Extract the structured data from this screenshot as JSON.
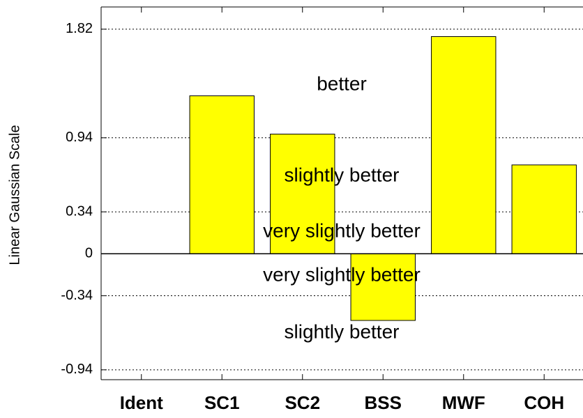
{
  "chart_data": {
    "type": "bar",
    "ylabel": "Linear Gaussian Scale",
    "categories": [
      "Ident",
      "SC1",
      "SC2",
      "BSS",
      "MWF",
      "COH"
    ],
    "values": [
      null,
      1.28,
      0.97,
      -0.54,
      1.76,
      0.72
    ],
    "color": "#ffff00",
    "ylim": [
      -1.02,
      2.0
    ],
    "yticks": [
      -0.94,
      -0.34,
      0,
      0.34,
      0.94,
      1.82
    ],
    "grid": true,
    "annotations": [
      "better",
      "slightly better",
      "very slightly better",
      "very slightly better",
      "slightly better"
    ]
  }
}
